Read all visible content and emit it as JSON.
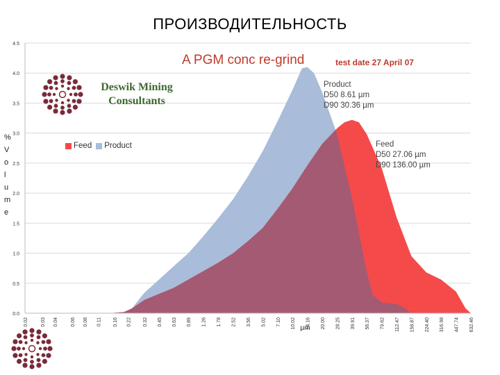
{
  "slide": {
    "title": "ПРОИЗВОДИТЕЛЬНОСТЬ",
    "company": "Deswik Mining\nConsultants"
  },
  "colors": {
    "feed": "#f44a4a",
    "product": "#a9bcd9",
    "overlap": "#a45a72",
    "grid": "#d9d9d9",
    "title_red": "#c0392b",
    "logo_dots": "#7a2a3a"
  },
  "icons": {
    "logo": "deswik-dot-circle-logo"
  },
  "chart_data": {
    "type": "area",
    "title": "A PGM conc  re-grind",
    "subtitle": "test date 27 April 07",
    "ylabel_chars": [
      "%",
      "V",
      "o",
      "l",
      "u",
      "m",
      "e"
    ],
    "xlabel": "µm",
    "ylim": [
      0,
      4.5
    ],
    "yticks": [
      "0.0",
      "0.5",
      "1.0",
      "1.5",
      "2.0",
      "2.5",
      "3.0",
      "3.5",
      "4.0",
      "4.5"
    ],
    "x_ticks": [
      "0.02",
      "0.03",
      "0.04",
      "0.06",
      "0.08",
      "0.11",
      "0.16",
      "0.22",
      "0.32",
      "0.45",
      "0.63",
      "0.89",
      "1.26",
      "1.78",
      "2.52",
      "3.56",
      "5.02",
      "7.10",
      "10.02",
      "14.16",
      "20.00",
      "28.25",
      "39.91",
      "56.37",
      "79.62",
      "112.47",
      "158.87",
      "224.40",
      "316.98",
      "447.74",
      "632.46"
    ],
    "grid": true,
    "legend": {
      "position": "left",
      "entries": [
        "Feed",
        "Product"
      ]
    },
    "series": [
      {
        "name": "Feed",
        "annotation": "Feed\nD50 27.06 µm\nD90 136.00 µm",
        "points": [
          [
            0.02,
            0
          ],
          [
            0.14,
            0
          ],
          [
            0.2,
            0.02
          ],
          [
            0.24,
            0.08
          ],
          [
            0.32,
            0.22
          ],
          [
            0.45,
            0.32
          ],
          [
            0.63,
            0.42
          ],
          [
            0.89,
            0.56
          ],
          [
            1.26,
            0.7
          ],
          [
            1.78,
            0.84
          ],
          [
            2.52,
            1.0
          ],
          [
            3.56,
            1.2
          ],
          [
            5.02,
            1.42
          ],
          [
            7.1,
            1.74
          ],
          [
            10.02,
            2.08
          ],
          [
            14.16,
            2.46
          ],
          [
            20.0,
            2.82
          ],
          [
            28.25,
            3.08
          ],
          [
            33.5,
            3.18
          ],
          [
            39.91,
            3.22
          ],
          [
            47.0,
            3.18
          ],
          [
            56.37,
            2.98
          ],
          [
            79.62,
            2.42
          ],
          [
            112.47,
            1.6
          ],
          [
            158.87,
            0.95
          ],
          [
            224.4,
            0.68
          ],
          [
            316.98,
            0.56
          ],
          [
            447.74,
            0.36
          ],
          [
            560.0,
            0.08
          ],
          [
            632.46,
            0
          ]
        ]
      },
      {
        "name": "Product",
        "annotation": "Product\nD50 8.61 µm\nD90 30.36 µm",
        "points": [
          [
            0.02,
            0
          ],
          [
            0.14,
            0
          ],
          [
            0.2,
            0.02
          ],
          [
            0.24,
            0.08
          ],
          [
            0.32,
            0.34
          ],
          [
            0.45,
            0.56
          ],
          [
            0.63,
            0.78
          ],
          [
            0.89,
            1.0
          ],
          [
            1.26,
            1.28
          ],
          [
            1.78,
            1.58
          ],
          [
            2.52,
            1.9
          ],
          [
            3.56,
            2.28
          ],
          [
            5.02,
            2.7
          ],
          [
            7.1,
            3.2
          ],
          [
            10.02,
            3.72
          ],
          [
            12.5,
            4.08
          ],
          [
            14.16,
            4.1
          ],
          [
            16.5,
            4.0
          ],
          [
            20.0,
            3.68
          ],
          [
            28.25,
            2.98
          ],
          [
            39.91,
            1.92
          ],
          [
            56.37,
            0.68
          ],
          [
            65.0,
            0.3
          ],
          [
            79.62,
            0.18
          ],
          [
            112.47,
            0.15
          ],
          [
            132.0,
            0.1
          ],
          [
            158.87,
            0
          ]
        ]
      }
    ]
  }
}
